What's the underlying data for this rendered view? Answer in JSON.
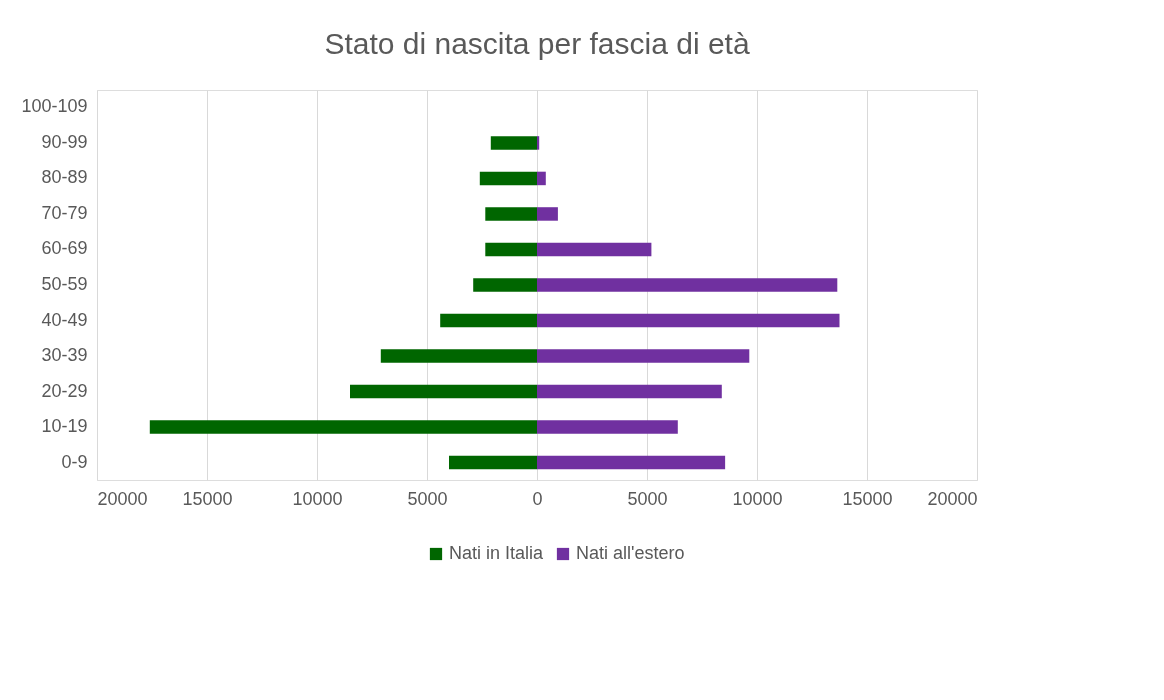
{
  "chart_data": {
    "type": "bar",
    "orientation": "horizontal",
    "stacked": true,
    "title": "Stato di nascita per fascia di età",
    "categories": [
      "100-109",
      "90-99",
      "80-89",
      "70-79",
      "60-69",
      "50-59",
      "40-49",
      "30-39",
      "20-29",
      "10-19",
      "0-9"
    ],
    "series": [
      {
        "name": "Nati in Italia",
        "color": "#006600",
        "values": [
          0,
          -2100,
          -2600,
          -2350,
          -2350,
          -2900,
          -4400,
          -7100,
          -8500,
          -17600,
          -4000
        ]
      },
      {
        "name": "Nati all'estero",
        "color": "#7030a0",
        "values": [
          0,
          100,
          400,
          950,
          5200,
          13650,
          13750,
          9650,
          8400,
          6400,
          8550
        ]
      }
    ],
    "xlim": [
      -20000,
      20000
    ],
    "xticks": [
      {
        "value": -20000,
        "label": "20000"
      },
      {
        "value": -15000,
        "label": "15000"
      },
      {
        "value": -10000,
        "label": "10000"
      },
      {
        "value": -5000,
        "label": "5000"
      },
      0,
      5000,
      10000,
      15000,
      20000
    ],
    "grid": "x",
    "legend": "bottom"
  }
}
